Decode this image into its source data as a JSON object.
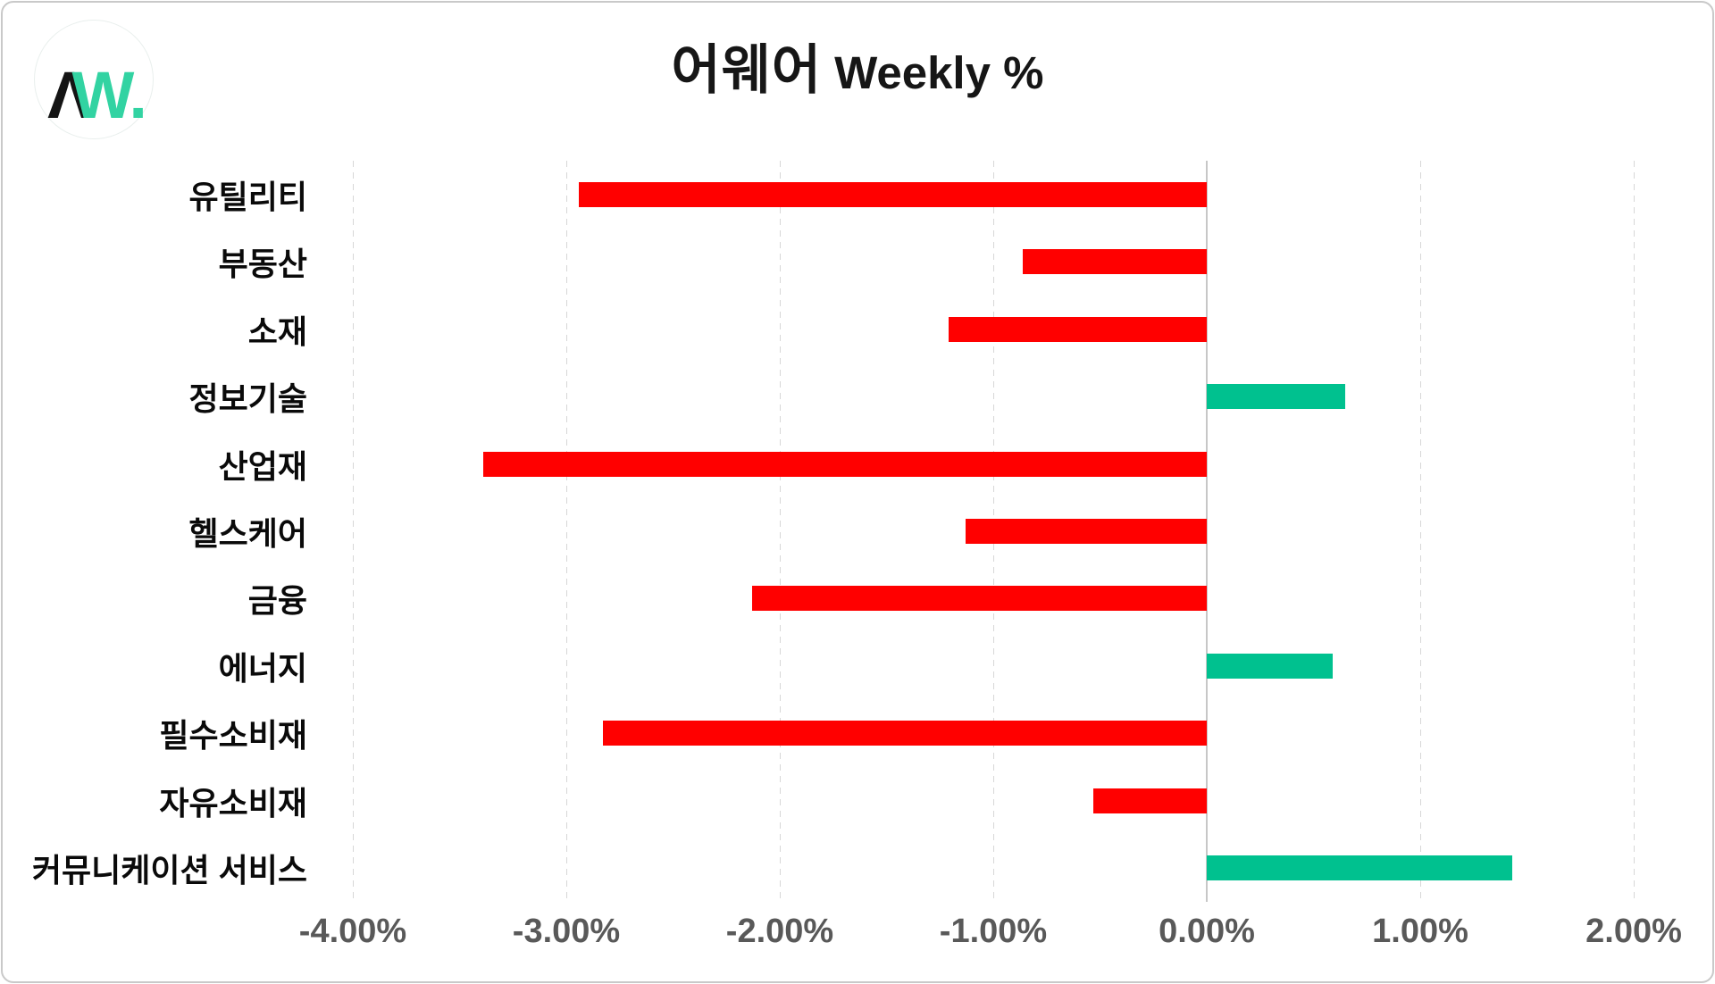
{
  "logo": {
    "part_a": "Λ",
    "part_w": "W",
    "part_dot": ".",
    "color_black": "#141414",
    "color_teal": "#32d3a2"
  },
  "title": {
    "korean": "어웨어",
    "latin": "Weekly %"
  },
  "chart_data": {
    "type": "bar",
    "orientation": "horizontal",
    "title": "어웨어 Weekly %",
    "xlabel": "",
    "ylabel": "",
    "categories": [
      "유틸리티",
      "부동산",
      "소재",
      "정보기술",
      "산업재",
      "헬스케어",
      "금융",
      "에너지",
      "필수소비재",
      "자유소비재",
      "커뮤니케이션 서비스"
    ],
    "values": [
      -2.94,
      -0.86,
      -1.21,
      0.65,
      -3.39,
      -1.13,
      -2.13,
      0.59,
      -2.83,
      -0.53,
      1.43
    ],
    "unit": "%",
    "xlim": [
      -4.17,
      2.23
    ],
    "x_ticks": [
      -4,
      -3,
      -2,
      -1,
      0,
      1,
      2
    ],
    "x_tick_labels": [
      "-4.00%",
      "-3.00%",
      "-2.00%",
      "-1.00%",
      "0.00%",
      "1.00%",
      "2.00%"
    ],
    "grid": "vertical-dashed",
    "legend": "none",
    "colors": {
      "negative": "#ff0000",
      "positive": "#00c18f",
      "gridline": "#d7d7d7",
      "zero_line": "#c7c7c7",
      "tick_label": "#595959",
      "category_label": "#0a0a0a"
    }
  }
}
